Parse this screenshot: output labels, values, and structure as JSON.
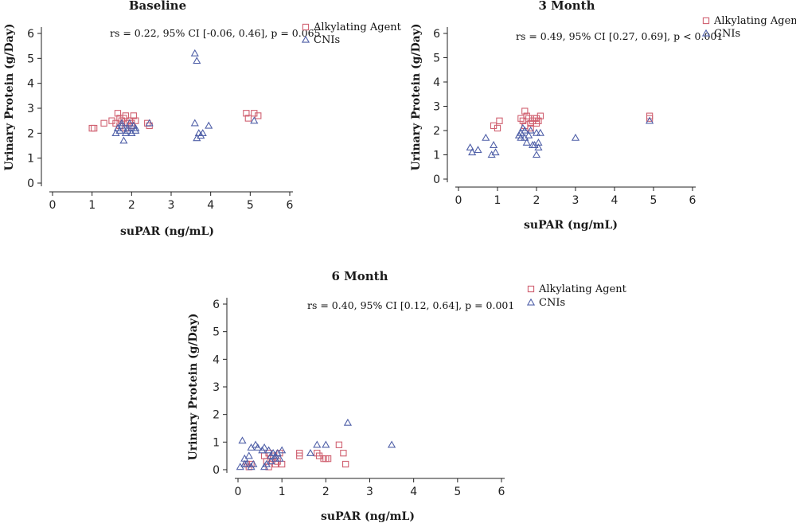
{
  "chart_data": [
    {
      "type": "scatter",
      "title": "Baseline",
      "xlabel": "suPAR (ng/mL)",
      "ylabel": "Urinary Protein (g/Day)",
      "xlim": [
        0,
        6
      ],
      "ylim": [
        0,
        6
      ],
      "xticks": [
        "0",
        "1",
        "2",
        "3",
        "4",
        "5",
        "6"
      ],
      "yticks": [
        "0",
        "1",
        "2",
        "3",
        "4",
        "5",
        "6"
      ],
      "annotation": "rs = 0.22, 95% CI [-0.06, 0.46], p = 0.065",
      "legend_position": "top-right",
      "grid": false,
      "series": [
        {
          "name": "Alkylating Agent",
          "marker": "square",
          "color": "#d06070",
          "x": [
            1.0,
            1.05,
            1.3,
            1.5,
            1.6,
            1.65,
            1.7,
            1.75,
            1.8,
            1.85,
            1.9,
            1.95,
            2.0,
            2.05,
            2.1,
            2.0,
            1.85,
            1.7,
            2.4,
            2.45,
            4.9,
            4.95,
            5.1,
            5.2
          ],
          "y": [
            2.2,
            2.2,
            2.4,
            2.5,
            2.4,
            2.8,
            2.6,
            2.5,
            2.6,
            2.7,
            2.4,
            2.5,
            2.4,
            2.7,
            2.5,
            2.3,
            2.2,
            2.3,
            2.4,
            2.3,
            2.8,
            2.6,
            2.8,
            2.7
          ]
        },
        {
          "name": "CNIs",
          "marker": "triangle",
          "color": "#5060a8",
          "x": [
            1.6,
            1.65,
            1.7,
            1.75,
            1.8,
            1.85,
            1.9,
            1.95,
            2.0,
            2.05,
            2.1,
            1.75,
            1.9,
            2.0,
            2.1,
            2.45,
            3.6,
            3.65,
            3.7,
            3.75,
            3.8,
            3.6,
            3.65,
            3.95,
            5.1
          ],
          "y": [
            2.0,
            2.2,
            2.1,
            2.3,
            1.7,
            2.0,
            2.2,
            2.4,
            2.0,
            2.3,
            2.2,
            2.4,
            2.1,
            2.0,
            2.1,
            2.4,
            5.2,
            4.9,
            2.0,
            1.9,
            2.0,
            2.4,
            1.8,
            2.3,
            2.5
          ]
        }
      ]
    },
    {
      "type": "scatter",
      "title": "3 Month",
      "xlabel": "suPAR (ng/mL)",
      "ylabel": "Urinary Protein (g/Day)",
      "xlim": [
        0,
        6
      ],
      "ylim": [
        0,
        6
      ],
      "xticks": [
        "0",
        "1",
        "2",
        "3",
        "4",
        "5",
        "6"
      ],
      "yticks": [
        "0",
        "1",
        "2",
        "3",
        "4",
        "5",
        "6"
      ],
      "annotation": "rs = 0.49, 95% CI [0.27, 0.69], p < 0.001",
      "legend_position": "top-right",
      "grid": false,
      "series": [
        {
          "name": "Alkylating Agent",
          "marker": "square",
          "color": "#d06070",
          "x": [
            0.9,
            1.0,
            1.05,
            1.6,
            1.65,
            1.7,
            1.75,
            1.8,
            1.85,
            1.9,
            1.95,
            2.0,
            2.05,
            2.1,
            1.7,
            1.85,
            2.0,
            4.9,
            4.9
          ],
          "y": [
            2.2,
            2.1,
            2.4,
            2.5,
            2.4,
            2.8,
            2.6,
            2.5,
            2.3,
            2.4,
            2.5,
            2.3,
            2.4,
            2.6,
            2.2,
            2.1,
            2.5,
            2.6,
            2.5
          ]
        },
        {
          "name": "CNIs",
          "marker": "triangle",
          "color": "#5060a8",
          "x": [
            0.3,
            0.35,
            0.5,
            0.7,
            0.85,
            0.9,
            0.95,
            1.55,
            1.6,
            1.65,
            1.7,
            1.75,
            1.6,
            1.7,
            1.8,
            1.85,
            1.95,
            2.0,
            2.05,
            2.1,
            2.0,
            2.05,
            1.9,
            3.0,
            4.9
          ],
          "y": [
            1.3,
            1.1,
            1.2,
            1.7,
            1.0,
            1.4,
            1.1,
            1.8,
            1.9,
            2.1,
            2.0,
            1.5,
            1.7,
            1.7,
            1.8,
            2.0,
            1.4,
            1.9,
            1.5,
            1.9,
            1.0,
            1.3,
            1.4,
            1.7,
            2.4
          ]
        }
      ]
    },
    {
      "type": "scatter",
      "title": "6 Month",
      "xlabel": "suPAR (ng/mL)",
      "ylabel": "Urinary Protein (g/Day)",
      "xlim": [
        0,
        6
      ],
      "ylim": [
        0,
        6
      ],
      "xticks": [
        "0",
        "1",
        "2",
        "3",
        "4",
        "5",
        "6"
      ],
      "yticks": [
        "0",
        "1",
        "2",
        "3",
        "4",
        "5",
        "6"
      ],
      "annotation": "rs = 0.40, 95% CI [0.12, 0.64], p = 0.001",
      "legend_position": "top-right",
      "grid": false,
      "series": [
        {
          "name": "Alkylating Agent",
          "marker": "square",
          "color": "#d06070",
          "x": [
            0.2,
            0.25,
            0.3,
            0.6,
            0.65,
            0.7,
            0.75,
            0.8,
            0.85,
            0.9,
            0.95,
            1.0,
            0.7,
            0.8,
            1.4,
            1.4,
            1.8,
            1.85,
            1.95,
            2.0,
            2.05,
            2.3,
            2.4,
            2.45
          ],
          "y": [
            0.2,
            0.1,
            0.2,
            0.5,
            0.3,
            0.6,
            0.4,
            0.5,
            0.2,
            0.3,
            0.6,
            0.2,
            0.1,
            0.4,
            0.6,
            0.5,
            0.6,
            0.5,
            0.4,
            0.4,
            0.4,
            0.9,
            0.6,
            0.2
          ]
        },
        {
          "name": "CNIs",
          "marker": "triangle",
          "color": "#5060a8",
          "x": [
            0.05,
            0.1,
            0.15,
            0.2,
            0.25,
            0.3,
            0.35,
            0.4,
            0.45,
            0.55,
            0.6,
            0.65,
            0.7,
            0.75,
            0.8,
            0.85,
            0.9,
            0.95,
            1.0,
            0.6,
            0.75,
            0.85,
            0.15,
            0.3,
            1.65,
            1.8,
            2.0,
            2.5,
            3.5
          ],
          "y": [
            0.1,
            1.05,
            0.4,
            0.2,
            0.5,
            0.8,
            0.2,
            0.9,
            0.8,
            0.7,
            0.8,
            0.2,
            0.7,
            0.5,
            0.6,
            0.4,
            0.6,
            0.4,
            0.7,
            0.1,
            0.3,
            0.5,
            0.2,
            0.1,
            0.6,
            0.9,
            0.9,
            1.7,
            0.9
          ]
        }
      ]
    }
  ]
}
